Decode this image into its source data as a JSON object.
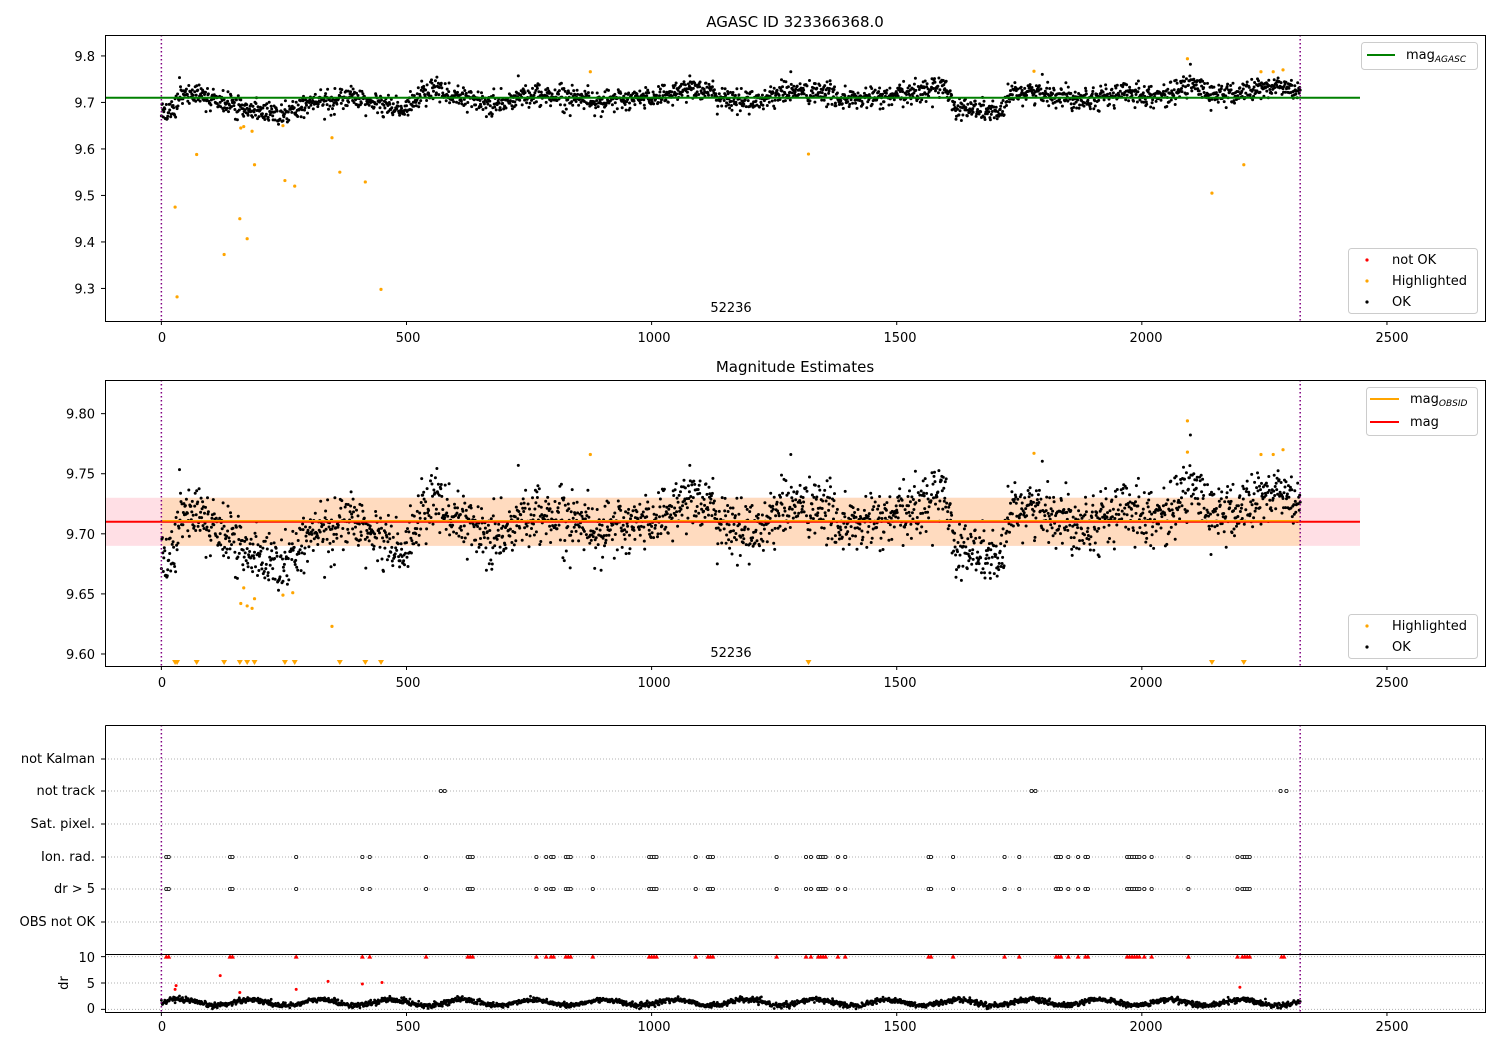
{
  "panels": {
    "top": {
      "title": "AGASC ID 323366368.0",
      "annotation": "52236",
      "yticks": [
        "9.8",
        "9.7",
        "9.6",
        "9.5",
        "9.4",
        "9.3"
      ],
      "xticks": [
        "0",
        "500",
        "1000",
        "1500",
        "2000",
        "2500"
      ],
      "legend_upper": [
        "mag_AGASC"
      ],
      "legend_lower": [
        "not OK",
        "Highlighted",
        "OK"
      ]
    },
    "middle": {
      "title": "Magnitude Estimates",
      "annotation": "52236",
      "yticks": [
        "9.80",
        "9.75",
        "9.70",
        "9.65",
        "9.60"
      ],
      "xticks": [
        "0",
        "500",
        "1000",
        "1500",
        "2000",
        "2500"
      ],
      "legend_upper": [
        "mag_OBSID",
        "mag"
      ],
      "legend_lower": [
        "Highlighted",
        "OK"
      ]
    },
    "flags": {
      "categories": [
        "not Kalman",
        "not track",
        "Sat. pixel.",
        "Ion. rad.",
        "dr > 5",
        "OBS not OK"
      ]
    },
    "dr": {
      "ylabel": "dr",
      "yticks": [
        "10",
        "5",
        "0"
      ],
      "xticks": [
        "0",
        "500",
        "1000",
        "1500",
        "2000",
        "2500"
      ]
    }
  },
  "colors": {
    "ok": "#000000",
    "highlighted": "#ffa500",
    "not_ok": "#ff0000",
    "mag_agasc": "#008000",
    "mag_obsid": "#ffa500",
    "mag": "#ff0000",
    "obsid_band": "#ffdab9",
    "mag_band": "#ffc0cb",
    "obsid_boundary": "#800080"
  },
  "chart_data": [
    {
      "type": "scatter",
      "title": "AGASC ID 323366368.0",
      "xlim": [
        -115,
        2700
      ],
      "ylim": [
        9.23,
        9.845
      ],
      "grid": false,
      "obsid_boundaries": [
        0,
        2323
      ],
      "obsid_label": "52236",
      "reference_line": {
        "name": "mag_AGASC",
        "y": 9.71,
        "x": [
          -115,
          2445
        ]
      },
      "series": [
        {
          "name": "OK",
          "note": "~2300 points following the baseline below with scatter ~0.012 mag"
        },
        {
          "name": "Highlighted",
          "points": [
            [
              28,
              9.475
            ],
            [
              32,
              9.282
            ],
            [
              72,
              9.588
            ],
            [
              128,
              9.373
            ],
            [
              160,
              9.45
            ],
            [
              162,
              9.645
            ],
            [
              168,
              9.648
            ],
            [
              175,
              9.407
            ],
            [
              185,
              9.638
            ],
            [
              190,
              9.566
            ],
            [
              248,
              9.65
            ],
            [
              252,
              9.532
            ],
            [
              272,
              9.52
            ],
            [
              348,
              9.624
            ],
            [
              364,
              9.55
            ],
            [
              416,
              9.529
            ],
            [
              448,
              9.298
            ],
            [
              875,
              9.766
            ],
            [
              1320,
              9.589
            ],
            [
              1780,
              9.767
            ],
            [
              2093,
              9.794
            ],
            [
              2143,
              9.505
            ],
            [
              2208,
              9.566
            ],
            [
              2243,
              9.766
            ],
            [
              2268,
              9.766
            ],
            [
              2288,
              9.77
            ]
          ]
        },
        {
          "name": "not OK",
          "points": []
        }
      ],
      "baseline": [
        [
          0,
          9.672
        ],
        [
          20,
          9.675
        ],
        [
          40,
          9.72
        ],
        [
          80,
          9.715
        ],
        [
          140,
          9.698
        ],
        [
          190,
          9.68
        ],
        [
          250,
          9.676
        ],
        [
          300,
          9.698
        ],
        [
          350,
          9.705
        ],
        [
          380,
          9.718
        ],
        [
          420,
          9.7
        ],
        [
          460,
          9.69
        ],
        [
          500,
          9.686
        ],
        [
          530,
          9.72
        ],
        [
          560,
          9.725
        ],
        [
          600,
          9.715
        ],
        [
          650,
          9.702
        ],
        [
          700,
          9.7
        ],
        [
          750,
          9.715
        ],
        [
          800,
          9.715
        ],
        [
          860,
          9.71
        ],
        [
          900,
          9.702
        ],
        [
          960,
          9.706
        ],
        [
          1000,
          9.712
        ],
        [
          1040,
          9.72
        ],
        [
          1090,
          9.735
        ],
        [
          1130,
          9.715
        ],
        [
          1170,
          9.702
        ],
        [
          1230,
          9.706
        ],
        [
          1260,
          9.722
        ],
        [
          1300,
          9.725
        ],
        [
          1360,
          9.718
        ],
        [
          1400,
          9.705
        ],
        [
          1450,
          9.71
        ],
        [
          1500,
          9.712
        ],
        [
          1560,
          9.728
        ],
        [
          1600,
          9.735
        ],
        [
          1620,
          9.688
        ],
        [
          1660,
          9.685
        ],
        [
          1715,
          9.678
        ],
        [
          1740,
          9.725
        ],
        [
          1800,
          9.72
        ],
        [
          1860,
          9.71
        ],
        [
          1920,
          9.712
        ],
        [
          1980,
          9.722
        ],
        [
          2040,
          9.712
        ],
        [
          2080,
          9.73
        ],
        [
          2100,
          9.742
        ],
        [
          2130,
          9.722
        ],
        [
          2180,
          9.715
        ],
        [
          2240,
          9.73
        ],
        [
          2280,
          9.735
        ],
        [
          2323,
          9.722
        ]
      ]
    },
    {
      "type": "scatter",
      "title": "Magnitude Estimates",
      "xlim": [
        -115,
        2700
      ],
      "ylim": [
        9.59,
        9.828
      ],
      "grid": false,
      "obsid_boundaries": [
        0,
        2323
      ],
      "obsid_label": "52236",
      "lines": [
        {
          "name": "mag_OBSID",
          "y": 9.71,
          "x": [
            0,
            2323
          ]
        },
        {
          "name": "mag",
          "y": 9.71,
          "x": [
            -115,
            2445
          ]
        }
      ],
      "bands": [
        {
          "name": "mag_OBSID",
          "y": [
            9.69,
            9.73
          ],
          "x": [
            0,
            2323
          ]
        },
        {
          "name": "mag",
          "y": [
            9.69,
            9.73
          ],
          "x": [
            -115,
            2445
          ]
        }
      ],
      "series": [
        {
          "name": "OK",
          "note": "same points as top panel"
        },
        {
          "name": "Highlighted",
          "points": [
            [
              162,
              9.642
            ],
            [
              168,
              9.655
            ],
            [
              175,
              9.64
            ],
            [
              185,
              9.638
            ],
            [
              190,
              9.646
            ],
            [
              248,
              9.649
            ],
            [
              268,
              9.651
            ],
            [
              348,
              9.623
            ],
            [
              875,
              9.766
            ],
            [
              1780,
              9.767
            ],
            [
              2093,
              9.794
            ],
            [
              2093,
              9.768
            ],
            [
              2243,
              9.766
            ],
            [
              2268,
              9.766
            ],
            [
              2288,
              9.77
            ]
          ]
        },
        {
          "name": "Highlighted (below axis)",
          "x": [
            28,
            32,
            72,
            128,
            160,
            175,
            190,
            252,
            272,
            364,
            416,
            448,
            1320,
            2143,
            2208
          ]
        }
      ]
    },
    {
      "type": "scatter",
      "title": "",
      "categories": [
        "not Kalman",
        "not track",
        "Sat. pixel.",
        "Ion. rad.",
        "dr > 5",
        "OBS not OK"
      ],
      "xlim": [
        -115,
        2700
      ],
      "grid": true,
      "series": [
        {
          "name": "not Kalman",
          "x": []
        },
        {
          "name": "not track",
          "x": [
            570,
            578,
            1775,
            1783,
            2283,
            2295
          ]
        },
        {
          "name": "Sat. pixel.",
          "x": []
        },
        {
          "name": "Ion. rad.",
          "x": [
            10,
            15,
            140,
            145,
            275,
            410,
            425,
            540,
            625,
            630,
            635,
            765,
            785,
            795,
            800,
            825,
            830,
            835,
            880,
            995,
            1000,
            1005,
            1010,
            1090,
            1115,
            1120,
            1125,
            1255,
            1315,
            1325,
            1340,
            1345,
            1350,
            1355,
            1380,
            1395,
            1565,
            1570,
            1615,
            1720,
            1750,
            1825,
            1830,
            1835,
            1850,
            1870,
            1885,
            1890,
            1970,
            1975,
            1980,
            1985,
            1990,
            1995,
            2005,
            2020,
            2095,
            2195,
            2205,
            2210,
            2215,
            2220
          ]
        },
        {
          "name": "dr > 5",
          "x": [
            10,
            15,
            140,
            145,
            275,
            410,
            425,
            540,
            625,
            630,
            635,
            765,
            785,
            795,
            800,
            825,
            830,
            835,
            880,
            995,
            1000,
            1005,
            1010,
            1090,
            1115,
            1120,
            1125,
            1255,
            1315,
            1325,
            1340,
            1345,
            1350,
            1355,
            1380,
            1395,
            1565,
            1570,
            1615,
            1720,
            1750,
            1825,
            1830,
            1835,
            1850,
            1870,
            1885,
            1890,
            1970,
            1975,
            1980,
            1985,
            1990,
            1995,
            2005,
            2020,
            2095,
            2195,
            2205,
            2210,
            2215,
            2220
          ]
        },
        {
          "name": "OBS not OK",
          "x": []
        }
      ]
    },
    {
      "type": "scatter",
      "title": "",
      "ylabel": "dr",
      "xlim": [
        -115,
        2700
      ],
      "ylim": [
        -0.5,
        10.5
      ],
      "grid": true,
      "series": [
        {
          "name": "OK",
          "note": "~2300 points mostly between 0.5 and 2.5"
        },
        {
          "name": "not OK",
          "points": [
            [
              28,
              3.8
            ],
            [
              30,
              4.5
            ],
            [
              120,
              6.4
            ],
            [
              160,
              3.2
            ],
            [
              275,
              3.8
            ],
            [
              340,
              5.3
            ],
            [
              410,
              4.8
            ],
            [
              450,
              5.1
            ],
            [
              2200,
              4.2
            ]
          ]
        },
        {
          "name": "not OK (clipped at 10)",
          "x": [
            10,
            15,
            140,
            145,
            275,
            410,
            425,
            540,
            625,
            630,
            635,
            765,
            785,
            795,
            800,
            825,
            830,
            835,
            880,
            995,
            1000,
            1005,
            1010,
            1090,
            1115,
            1120,
            1125,
            1255,
            1315,
            1325,
            1340,
            1345,
            1350,
            1355,
            1380,
            1395,
            1565,
            1570,
            1615,
            1720,
            1750,
            1825,
            1830,
            1835,
            1850,
            1870,
            1885,
            1890,
            1970,
            1975,
            1980,
            1985,
            1990,
            1995,
            2005,
            2020,
            2095,
            2195,
            2205,
            2210,
            2215,
            2220,
            2285,
            2290
          ]
        }
      ]
    }
  ]
}
